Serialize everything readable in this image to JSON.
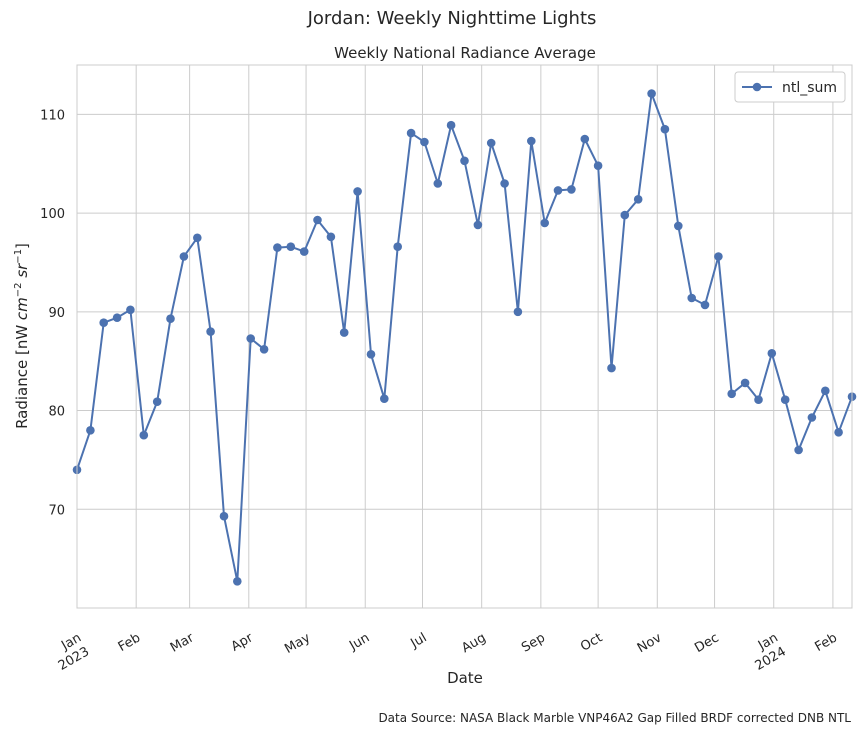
{
  "chart_data": {
    "type": "line",
    "suptitle": "Jordan: Weekly Nighttime Lights",
    "title": "Weekly National Radiance Average",
    "xlabel": "Date",
    "ylabel_prefix": "Radiance [nW ",
    "ylabel_cm": "cm",
    "ylabel_cm_exp": "−2",
    "ylabel_sr": "sr",
    "ylabel_sr_exp": "−1",
    "ylabel_suffix": "]",
    "source": "Data Source: NASA Black Marble VNP46A2 Gap Filled BRDF corrected DNB NTL",
    "legend_position": "upper right",
    "grid": true,
    "xlim": [
      "2023-01-01",
      "2024-02-11"
    ],
    "ylim": [
      60,
      115
    ],
    "yticks": [
      70,
      80,
      90,
      100,
      110
    ],
    "xticks": [
      {
        "date": "2023-01-01",
        "label": "Jan",
        "year": "2023"
      },
      {
        "date": "2023-02-01",
        "label": "Feb",
        "year": ""
      },
      {
        "date": "2023-03-01",
        "label": "Mar",
        "year": ""
      },
      {
        "date": "2023-04-01",
        "label": "Apr",
        "year": ""
      },
      {
        "date": "2023-05-01",
        "label": "May",
        "year": ""
      },
      {
        "date": "2023-06-01",
        "label": "Jun",
        "year": ""
      },
      {
        "date": "2023-07-01",
        "label": "Jul",
        "year": ""
      },
      {
        "date": "2023-08-01",
        "label": "Aug",
        "year": ""
      },
      {
        "date": "2023-09-01",
        "label": "Sep",
        "year": ""
      },
      {
        "date": "2023-10-01",
        "label": "Oct",
        "year": ""
      },
      {
        "date": "2023-11-01",
        "label": "Nov",
        "year": ""
      },
      {
        "date": "2023-12-01",
        "label": "Dec",
        "year": ""
      },
      {
        "date": "2024-01-01",
        "label": "Jan",
        "year": "2024"
      },
      {
        "date": "2024-02-01",
        "label": "Feb",
        "year": ""
      }
    ],
    "series": [
      {
        "name": "ntl_sum",
        "color": "#4c72b0",
        "points": [
          [
            "2023-01-01",
            74.0
          ],
          [
            "2023-01-08",
            78.0
          ],
          [
            "2023-01-15",
            88.9
          ],
          [
            "2023-01-22",
            89.4
          ],
          [
            "2023-01-29",
            90.2
          ],
          [
            "2023-02-05",
            77.5
          ],
          [
            "2023-02-12",
            80.9
          ],
          [
            "2023-02-19",
            89.3
          ],
          [
            "2023-02-26",
            95.6
          ],
          [
            "2023-03-05",
            97.5
          ],
          [
            "2023-03-12",
            88.0
          ],
          [
            "2023-03-19",
            69.3
          ],
          [
            "2023-03-26",
            62.7
          ],
          [
            "2023-04-02",
            87.3
          ],
          [
            "2023-04-09",
            86.2
          ],
          [
            "2023-04-16",
            96.5
          ],
          [
            "2023-04-23",
            96.6
          ],
          [
            "2023-04-30",
            96.1
          ],
          [
            "2023-05-07",
            99.3
          ],
          [
            "2023-05-14",
            97.6
          ],
          [
            "2023-05-21",
            87.9
          ],
          [
            "2023-05-28",
            102.2
          ],
          [
            "2023-06-04",
            85.7
          ],
          [
            "2023-06-11",
            81.2
          ],
          [
            "2023-06-18",
            96.6
          ],
          [
            "2023-06-25",
            108.1
          ],
          [
            "2023-07-02",
            107.2
          ],
          [
            "2023-07-09",
            103.0
          ],
          [
            "2023-07-16",
            108.9
          ],
          [
            "2023-07-23",
            105.3
          ],
          [
            "2023-07-30",
            98.8
          ],
          [
            "2023-08-06",
            107.1
          ],
          [
            "2023-08-13",
            103.0
          ],
          [
            "2023-08-20",
            90.0
          ],
          [
            "2023-08-27",
            107.3
          ],
          [
            "2023-09-03",
            99.0
          ],
          [
            "2023-09-10",
            102.3
          ],
          [
            "2023-09-17",
            102.4
          ],
          [
            "2023-09-24",
            107.5
          ],
          [
            "2023-10-01",
            104.8
          ],
          [
            "2023-10-08",
            84.3
          ],
          [
            "2023-10-15",
            99.8
          ],
          [
            "2023-10-22",
            101.4
          ],
          [
            "2023-10-29",
            112.1
          ],
          [
            "2023-11-05",
            108.5
          ],
          [
            "2023-11-12",
            98.7
          ],
          [
            "2023-11-19",
            91.4
          ],
          [
            "2023-11-26",
            90.7
          ],
          [
            "2023-12-03",
            95.6
          ],
          [
            "2023-12-10",
            81.7
          ],
          [
            "2023-12-17",
            82.8
          ],
          [
            "2023-12-24",
            81.1
          ],
          [
            "2023-12-31",
            85.8
          ],
          [
            "2024-01-07",
            81.1
          ],
          [
            "2024-01-14",
            76.0
          ],
          [
            "2024-01-21",
            79.3
          ],
          [
            "2024-01-28",
            82.0
          ],
          [
            "2024-02-04",
            77.8
          ],
          [
            "2024-02-11",
            81.4
          ]
        ]
      }
    ]
  }
}
